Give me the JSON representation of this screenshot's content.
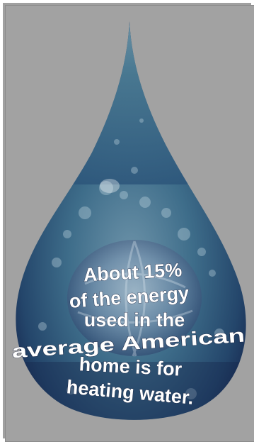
{
  "poster": {
    "caption_lines": [
      "About 15%",
      "of the energy",
      "used in the",
      "average American",
      "home is for",
      "heating water."
    ]
  },
  "colors": {
    "background": "#a2a2a2",
    "drop_deep": "#16254d",
    "drop_mid": "#3d6e8a",
    "drop_light": "#9fc3cf",
    "text": "#ffffff"
  },
  "icons": {
    "drop": "water-drop-icon",
    "globe": "globe-icon"
  }
}
